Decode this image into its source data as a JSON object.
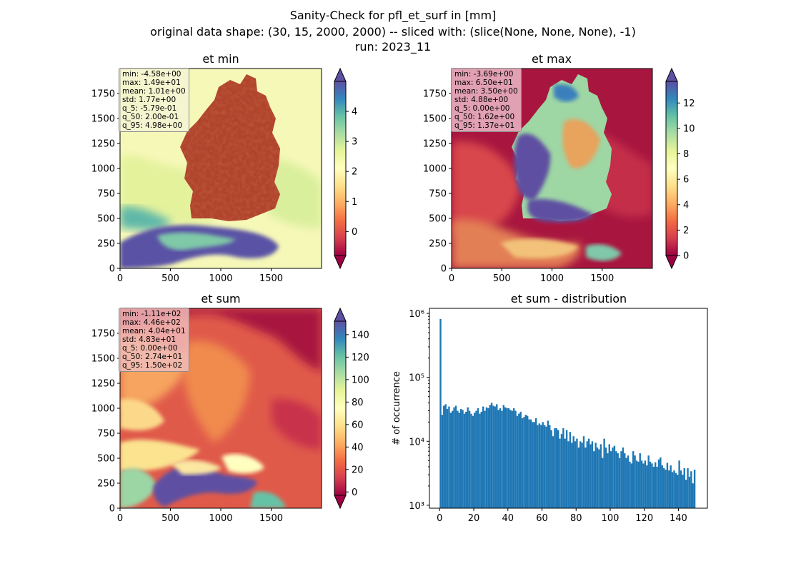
{
  "suptitle": {
    "line1": "Sanity-Check for pfl_et_surf in [mm]",
    "line2": "original data shape: (30, 15, 2000, 2000) -- sliced with: (slice(None, None, None), -1)",
    "line3": "run: 2023_11"
  },
  "colors": {
    "histogram": "#1f77b4",
    "map_ocean_min": "#f7f8b4",
    "colormap": "Spectral"
  },
  "chart_data": [
    {
      "type": "heatmap",
      "title": "et min",
      "colormap": "Spectral",
      "x_ticks": [
        "0",
        "500",
        "1000",
        "1500"
      ],
      "y_ticks": [
        "0",
        "250",
        "500",
        "750",
        "1000",
        "1250",
        "1500",
        "1750"
      ],
      "xlim": [
        0,
        2000
      ],
      "ylim": [
        0,
        2000
      ],
      "colorbar": {
        "ticks": [
          "0",
          "1",
          "2",
          "3",
          "4"
        ],
        "range": [
          -0.8,
          5.0
        ],
        "extend": "both"
      },
      "stats": [
        "min: -4.58e+00",
        "max: 1.49e+01",
        "mean: 1.01e+00",
        "std: 1.77e+00",
        "q_5: -5.79e-01",
        "q_50: 2.00e-01",
        "q_95: 4.98e+00"
      ]
    },
    {
      "type": "heatmap",
      "title": "et max",
      "colormap": "Spectral",
      "x_ticks": [
        "0",
        "500",
        "1000",
        "1500"
      ],
      "y_ticks": [
        "0",
        "250",
        "500",
        "750",
        "1000",
        "1250",
        "1500",
        "1750"
      ],
      "xlim": [
        0,
        2000
      ],
      "ylim": [
        0,
        2000
      ],
      "colorbar": {
        "ticks": [
          "0",
          "2",
          "4",
          "6",
          "8",
          "10",
          "12"
        ],
        "range": [
          0,
          13.7
        ],
        "extend": "both"
      },
      "stats": [
        "min: -3.69e+00",
        "max: 6.50e+01",
        "mean: 3.50e+00",
        "std: 4.88e+00",
        "q_5: 0.00e+00",
        "q_50: 1.62e+00",
        "q_95: 1.37e+01"
      ]
    },
    {
      "type": "heatmap",
      "title": "et sum",
      "colormap": "Spectral",
      "x_ticks": [
        "0",
        "500",
        "1000",
        "1500"
      ],
      "y_ticks": [
        "0",
        "250",
        "500",
        "750",
        "1000",
        "1250",
        "1500",
        "1750"
      ],
      "xlim": [
        0,
        2000
      ],
      "ylim": [
        0,
        2000
      ],
      "colorbar": {
        "ticks": [
          "0",
          "20",
          "40",
          "60",
          "80",
          "100",
          "120",
          "140"
        ],
        "range": [
          -3,
          152
        ],
        "extend": "both"
      },
      "stats": [
        "min: -1.11e+02",
        "max: 4.46e+02",
        "mean: 4.04e+01",
        "std: 4.83e+01",
        "q_5: 0.00e+00",
        "q_50: 2.74e+01",
        "q_95: 1.50e+02"
      ]
    },
    {
      "type": "bar",
      "title": "et sum - distribution",
      "xlabel": "",
      "ylabel": "# of occurrence",
      "yscale": "log",
      "xlim": [
        -6,
        157
      ],
      "ylim": [
        900,
        1200000
      ],
      "x_ticks": [
        "0",
        "20",
        "40",
        "60",
        "80",
        "100",
        "120",
        "140"
      ],
      "y_ticks": [
        "10³",
        "10⁴",
        "10⁵",
        "10⁶"
      ],
      "bin_start": 0,
      "bin_width": 1,
      "values": [
        820000,
        26000,
        36000,
        38000,
        32000,
        35000,
        28000,
        30000,
        34000,
        36000,
        30000,
        28000,
        32000,
        31000,
        27000,
        29000,
        34000,
        30000,
        27000,
        25000,
        28000,
        30000,
        33000,
        27000,
        29000,
        35000,
        30000,
        34000,
        33000,
        37000,
        40000,
        36000,
        35000,
        38000,
        31000,
        33000,
        30000,
        37000,
        34000,
        33000,
        33000,
        31000,
        30000,
        33000,
        30000,
        25000,
        27000,
        29000,
        23000,
        24000,
        26000,
        25000,
        22000,
        22000,
        20000,
        20000,
        23000,
        18000,
        19000,
        18000,
        20000,
        18000,
        17000,
        21000,
        18000,
        15000,
        12000,
        16000,
        16000,
        15000,
        11000,
        13000,
        16000,
        11000,
        15000,
        10000,
        14000,
        9500,
        12000,
        10000,
        11000,
        8000,
        10000,
        9500,
        12000,
        8000,
        10000,
        11000,
        9000,
        10000,
        7000,
        9500,
        8000,
        7500,
        9000,
        5500,
        11000,
        8000,
        6500,
        9000,
        7000,
        8000,
        8500,
        7000,
        6500,
        5500,
        7000,
        8000,
        6500,
        5500,
        6000,
        4800,
        4500,
        7000,
        6000,
        5000,
        4800,
        6500,
        5000,
        4500,
        5000,
        4200,
        6000,
        4800,
        4500,
        4000,
        4700,
        4000,
        5200,
        5600,
        4200,
        3800,
        3600,
        4600,
        3500,
        4200,
        3300,
        3500,
        3200,
        3000,
        5000,
        3500,
        3000,
        3800,
        2500,
        3800,
        2800,
        3400,
        2200,
        3600
      ]
    }
  ]
}
